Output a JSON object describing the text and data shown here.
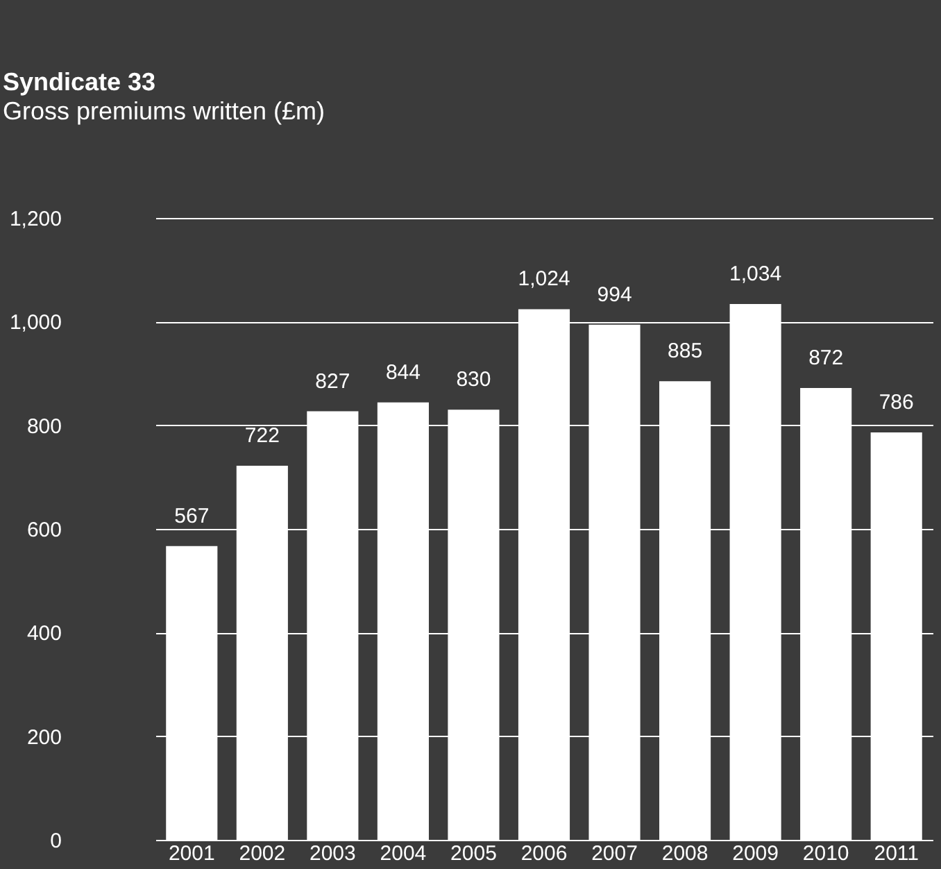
{
  "chart_data": {
    "type": "bar",
    "title": "Syndicate 33",
    "subtitle": "Gross premiums written (£m)",
    "categories": [
      "2001",
      "2002",
      "2003",
      "2004",
      "2005",
      "2006",
      "2007",
      "2008",
      "2009",
      "2010",
      "2011"
    ],
    "values": [
      567,
      722,
      827,
      844,
      830,
      1024,
      994,
      885,
      1034,
      872,
      786
    ],
    "color": "#ffffff",
    "value_labels": [
      "567",
      "722",
      "827",
      "844",
      "830",
      "1,024",
      "994",
      "885",
      "1,034",
      "872",
      "786"
    ],
    "ylim": [
      0,
      1200
    ],
    "yticks": [
      0,
      {
        "value": 200,
        "label": "200"
      },
      {
        "value": 400,
        "label": "400"
      },
      {
        "value": 600,
        "label": "600"
      },
      {
        "value": 800,
        "label": "800"
      },
      {
        "value": 1000,
        "label": "1,000"
      },
      {
        "value": 1200,
        "label": "1,200"
      }
    ],
    "grid": "y"
  }
}
